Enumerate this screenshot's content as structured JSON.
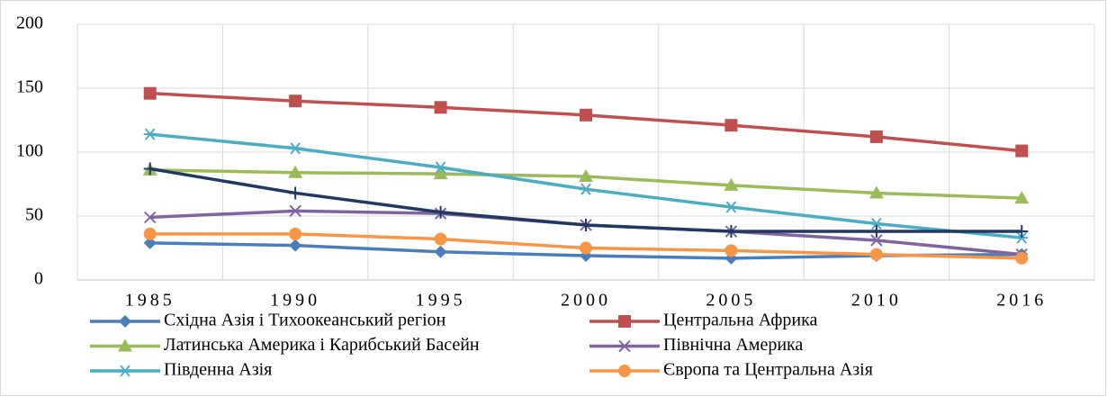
{
  "chart_data": {
    "type": "line",
    "categories": [
      "1985",
      "1990",
      "1995",
      "2000",
      "2005",
      "2010",
      "2016"
    ],
    "ylim": [
      0,
      200
    ],
    "yticks": [
      0,
      50,
      100,
      150,
      200
    ],
    "grid": true,
    "legend": "bottom",
    "series": [
      {
        "name": "Східна Азія і Тихоокеанський регіон",
        "color": "#4a7ebb",
        "marker": "diamond",
        "values": [
          29,
          27,
          22,
          19,
          17,
          19,
          20
        ]
      },
      {
        "name": "Центральна Африка",
        "color": "#c0504d",
        "marker": "square",
        "values": [
          146,
          140,
          135,
          129,
          121,
          112,
          101
        ]
      },
      {
        "name": "Латинська Америка і Карибський Басейн",
        "color": "#9bbb59",
        "marker": "triangle",
        "values": [
          86,
          84,
          83,
          81,
          74,
          68,
          64
        ]
      },
      {
        "name": "Північна Америка",
        "color": "#8064a2",
        "marker": "cross",
        "values": [
          49,
          54,
          52,
          43,
          38,
          31,
          20
        ]
      },
      {
        "name": "Південна Азія",
        "color": "#4bacc6",
        "marker": "star",
        "values": [
          114,
          103,
          88,
          71,
          57,
          44,
          33
        ]
      },
      {
        "name": "Європа та Центральна Азія",
        "color": "#f79646",
        "marker": "circle",
        "values": [
          36,
          36,
          32,
          25,
          23,
          20,
          17
        ]
      },
      {
        "color": "#1f3864",
        "marker": "plus",
        "values": [
          87,
          68,
          53,
          43,
          38,
          38,
          38
        ]
      }
    ]
  }
}
